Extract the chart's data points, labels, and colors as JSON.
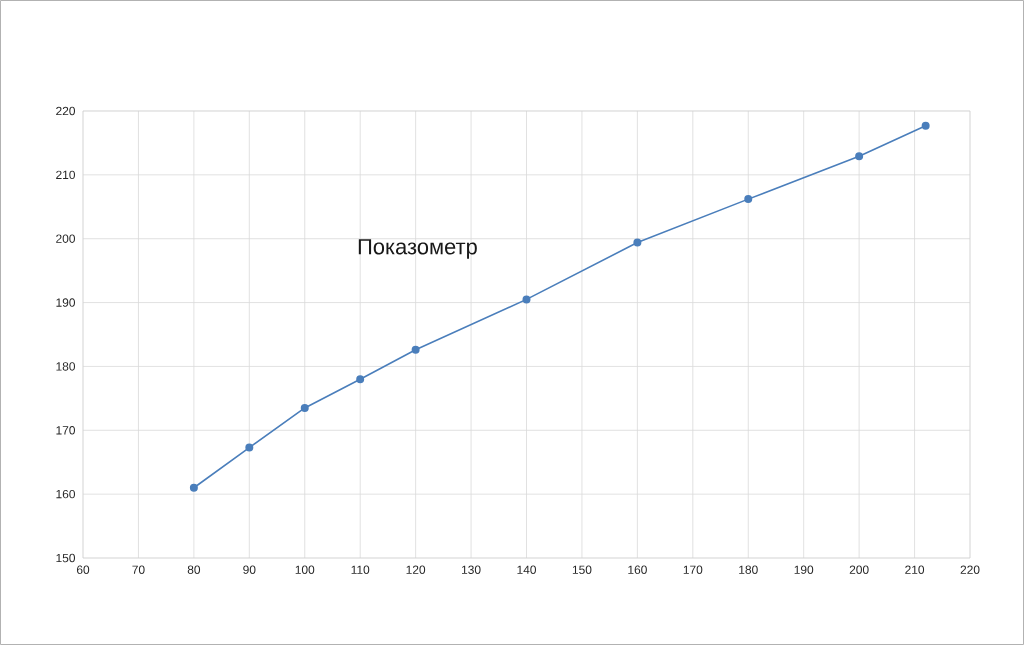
{
  "chart_data": {
    "type": "line",
    "title": "Показометр",
    "x": [
      80,
      90,
      100,
      110,
      120,
      140,
      160,
      180,
      200,
      212
    ],
    "series": [
      {
        "color": "#4a7ebb",
        "values": [
          161.0,
          167.3,
          173.5,
          178.0,
          182.6,
          190.5,
          199.4,
          206.2,
          212.9,
          217.7
        ]
      }
    ],
    "xlim": [
      60,
      220
    ],
    "xticks": [
      60,
      70,
      80,
      90,
      100,
      110,
      120,
      130,
      140,
      150,
      160,
      170,
      180,
      190,
      200,
      210,
      220
    ],
    "ylim": [
      150,
      220
    ],
    "yticks": [
      150,
      160,
      170,
      180,
      190,
      200,
      210,
      220
    ],
    "grid": true,
    "marker": "circle",
    "line_style": "solid"
  }
}
